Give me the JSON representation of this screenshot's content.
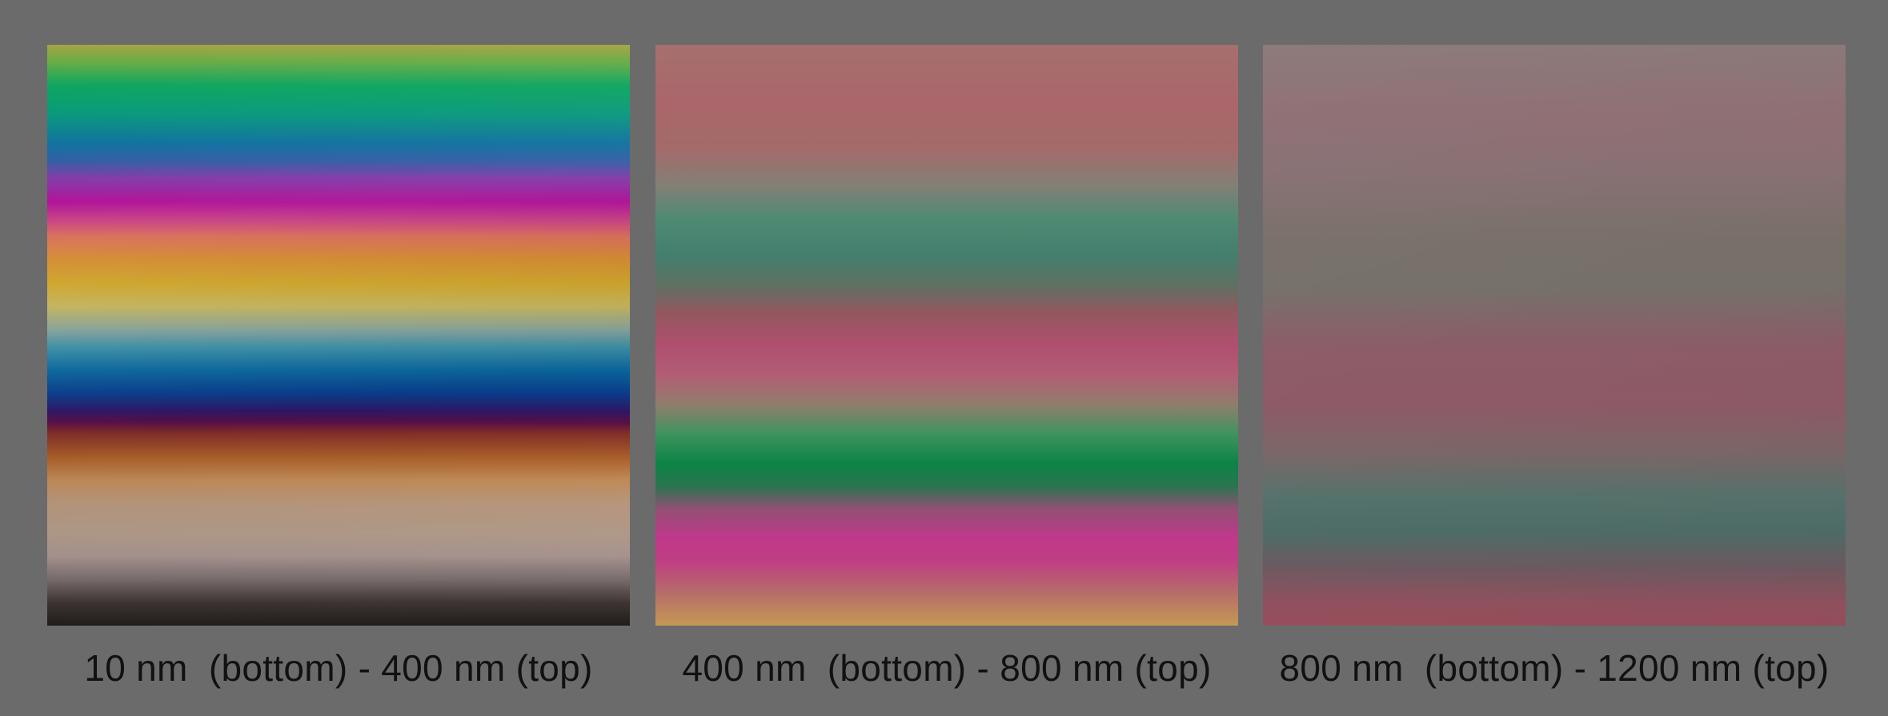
{
  "panels": [
    {
      "caption": "10 nm  (bottom) - 400 nm (top)"
    },
    {
      "caption": "400 nm  (bottom) - 800 nm (top)"
    },
    {
      "caption": "800 nm  (bottom) - 1200 nm (top)"
    }
  ],
  "colors": {
    "background": "#6b6b6b",
    "caption_text": "#111111"
  }
}
